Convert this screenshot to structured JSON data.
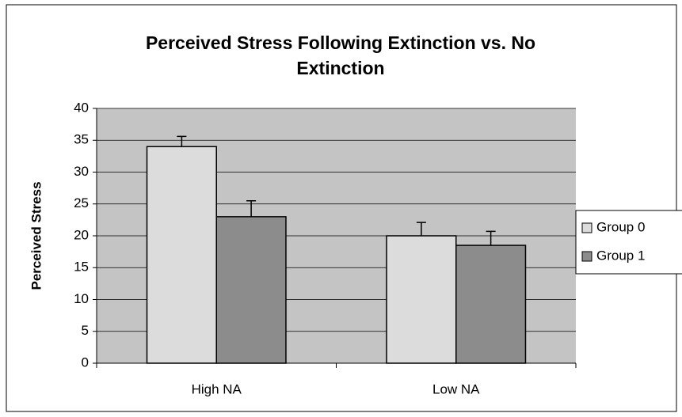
{
  "chart_data": {
    "type": "bar",
    "title": "Perceived Stress Following Extinction vs. No Extinction",
    "ylabel": "Perceived Stress",
    "categories": [
      "High NA",
      "Low NA"
    ],
    "series": [
      {
        "name": "Group 0",
        "color": "#dcdcdc",
        "values": [
          34,
          20
        ],
        "errors": [
          1.6,
          2.1
        ]
      },
      {
        "name": "Group 1",
        "color": "#8c8c8c",
        "values": [
          23,
          18.5
        ],
        "errors": [
          2.5,
          2.2
        ]
      }
    ],
    "ylim": [
      0,
      40
    ],
    "yticks": [
      0,
      5,
      10,
      15,
      20,
      25,
      30,
      35,
      40
    ],
    "grid": true,
    "legend": "right"
  }
}
